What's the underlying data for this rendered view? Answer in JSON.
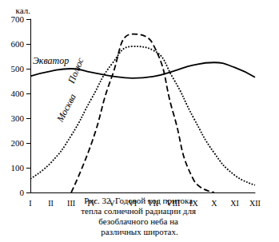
{
  "chart_data": {
    "type": "line",
    "title": "Рис. 32. Годовой ход притока тепла солнечной радиации для безоблачного неба на различных широтах.",
    "ylabel": "кал.",
    "categories": [
      "I",
      "II",
      "III",
      "IV",
      "V",
      "VI",
      "VII",
      "VIII",
      "IX",
      "X",
      "XI",
      "XII"
    ],
    "series": [
      {
        "name": "Экватор",
        "color": "#000000",
        "line_style": "solid",
        "values": [
          470,
          490,
          500,
          485,
          470,
          462,
          468,
          490,
          515,
          525,
          505,
          465
        ]
      },
      {
        "name": "Москва",
        "color": "#000000",
        "line_style": "dotted",
        "values": [
          55,
          120,
          230,
          380,
          520,
          590,
          575,
          460,
          300,
          160,
          70,
          30
        ]
      },
      {
        "name": "Полюс",
        "color": "#000000",
        "line_style": "dashed",
        "values": [
          null,
          null,
          0,
          200,
          470,
          640,
          600,
          320,
          50,
          0,
          null,
          null
        ]
      }
    ],
    "ylim": [
      0,
      700
    ],
    "yticks": [
      0,
      100,
      200,
      300,
      400,
      500,
      600,
      700
    ],
    "grid": false
  }
}
